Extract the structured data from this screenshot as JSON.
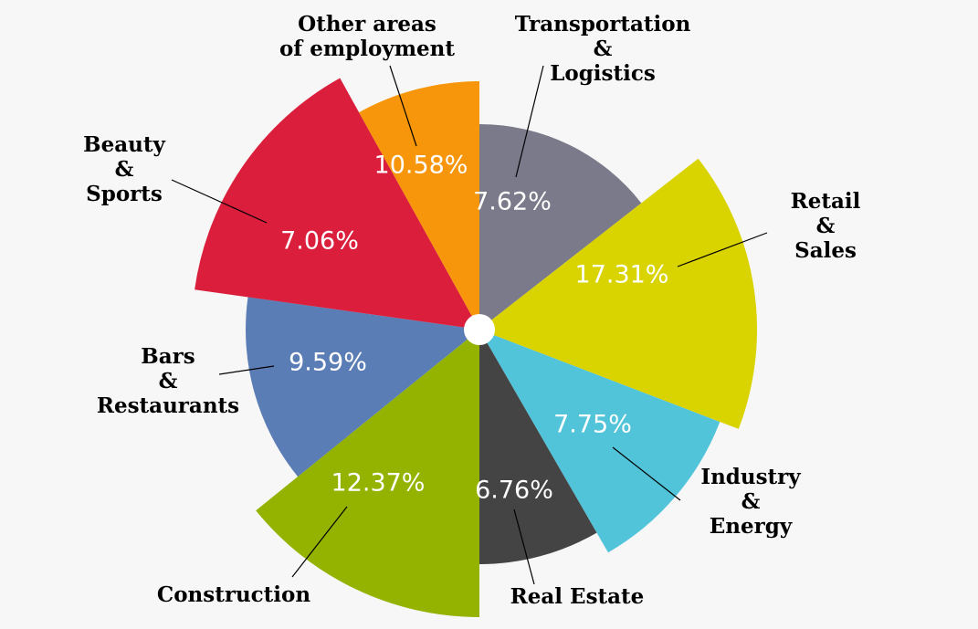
{
  "chart_data": {
    "type": "pie",
    "variant": "rose (variable radius)",
    "slices": [
      {
        "label": "Transportation & Logistics",
        "label_lines": [
          "Transportation",
          "&",
          "Logistics"
        ],
        "value": 7.62,
        "value_label": "7.62%",
        "color": "#7b7a8a"
      },
      {
        "label": "Retail & Sales",
        "label_lines": [
          "Retail",
          "&",
          "Sales"
        ],
        "value": 17.31,
        "value_label": "17.31%",
        "color": "#d9d300"
      },
      {
        "label": "Industry & Energy",
        "label_lines": [
          "Industry",
          "&",
          "Energy"
        ],
        "value": 7.75,
        "value_label": "7.75%",
        "color": "#52c4d9"
      },
      {
        "label": "Real Estate",
        "label_lines": [
          "Real Estate"
        ],
        "value": 6.76,
        "value_label": "6.76%",
        "color": "#444444"
      },
      {
        "label": "Construction",
        "label_lines": [
          "Construction"
        ],
        "value": 12.37,
        "value_label": "12.37%",
        "color": "#93b300"
      },
      {
        "label": "Bars & Restaurants",
        "label_lines": [
          "Bars",
          "&",
          "Restaurants"
        ],
        "value": 9.59,
        "value_label": "9.59%",
        "color": "#5b7db5"
      },
      {
        "label": "Beauty & Sports",
        "label_lines": [
          "Beauty",
          "&",
          "Sports"
        ],
        "value": 7.06,
        "value_label": "7.06%",
        "color": "#da1e3c"
      },
      {
        "label": "Other areas of employment",
        "label_lines": [
          "Other areas",
          "of employment"
        ],
        "value": 10.58,
        "value_label": "10.58%",
        "color": "#f7960a"
      }
    ]
  }
}
